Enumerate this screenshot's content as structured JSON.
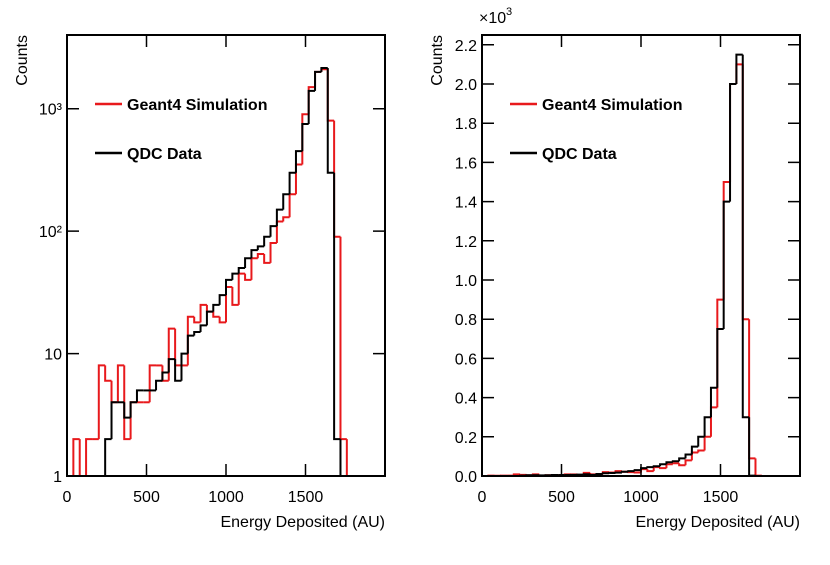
{
  "chart_data": [
    {
      "type": "histogram",
      "x_label": "Energy Deposited (AU)",
      "y_label": "Counts",
      "log_y": true,
      "bins": [
        0,
        40,
        80,
        120,
        160,
        200,
        240,
        280,
        320,
        360,
        400,
        440,
        480,
        520,
        560,
        600,
        640,
        680,
        720,
        760,
        800,
        840,
        880,
        920,
        960,
        1000,
        1040,
        1080,
        1120,
        1160,
        1200,
        1240,
        1280,
        1320,
        1360,
        1400,
        1440,
        1480,
        1520,
        1560,
        1600,
        1640,
        1680,
        1720,
        1760,
        1800,
        1840,
        1880,
        1920,
        1960,
        2000
      ],
      "series": [
        {
          "name": "Geant4 Simulation",
          "color": "#e8191c",
          "values": [
            0,
            2,
            1,
            2,
            2,
            8,
            6,
            4,
            8,
            2,
            4,
            4,
            4,
            8,
            8,
            6,
            16,
            8,
            8,
            20,
            18,
            25,
            22,
            20,
            18,
            35,
            25,
            45,
            40,
            60,
            65,
            55,
            80,
            120,
            130,
            200,
            350,
            900,
            1500,
            2000,
            2100,
            800,
            90,
            2,
            0,
            0,
            0,
            0,
            0,
            0
          ]
        },
        {
          "name": "QDC Data",
          "color": "#000000",
          "values": [
            0,
            0,
            0,
            0,
            0,
            0,
            2,
            4,
            4,
            3,
            4,
            5,
            5,
            5,
            6,
            7,
            9,
            6,
            10,
            14,
            15,
            17,
            22,
            25,
            30,
            40,
            45,
            50,
            60,
            70,
            75,
            90,
            110,
            150,
            200,
            300,
            450,
            750,
            1400,
            2000,
            2150,
            300,
            2,
            0,
            0,
            0,
            0,
            0,
            0,
            0
          ]
        }
      ],
      "xlim": [
        0,
        2000
      ],
      "xticks": [
        0,
        500,
        1000,
        1500
      ],
      "ylim": [
        1,
        4000
      ],
      "yticks": [
        1,
        10,
        {
          "value": 100,
          "label": "10²"
        },
        {
          "value": 1000,
          "label": "10³"
        }
      ],
      "legend": "upper left"
    },
    {
      "type": "histogram",
      "x_label": "Energy Deposited (AU)",
      "y_label": "Counts",
      "log_y": false,
      "multiplier_base": "×10",
      "multiplier_exponent": "3",
      "bins": [
        0,
        40,
        80,
        120,
        160,
        200,
        240,
        280,
        320,
        360,
        400,
        440,
        480,
        520,
        560,
        600,
        640,
        680,
        720,
        760,
        800,
        840,
        880,
        920,
        960,
        1000,
        1040,
        1080,
        1120,
        1160,
        1200,
        1240,
        1280,
        1320,
        1360,
        1400,
        1440,
        1480,
        1520,
        1560,
        1600,
        1640,
        1680,
        1720,
        1760,
        1800,
        1840,
        1880,
        1920,
        1960,
        2000
      ],
      "series": [
        {
          "name": "Geant4 Simulation",
          "color": "#e8191c",
          "values": [
            0,
            0.002,
            0.001,
            0.002,
            0.002,
            0.008,
            0.006,
            0.004,
            0.008,
            0.002,
            0.004,
            0.004,
            0.004,
            0.008,
            0.008,
            0.006,
            0.016,
            0.008,
            0.008,
            0.02,
            0.018,
            0.025,
            0.022,
            0.02,
            0.018,
            0.035,
            0.025,
            0.045,
            0.04,
            0.06,
            0.065,
            0.055,
            0.08,
            0.12,
            0.13,
            0.2,
            0.35,
            0.9,
            1.5,
            2.0,
            2.1,
            0.8,
            0.09,
            0.002,
            0,
            0,
            0,
            0,
            0,
            0
          ]
        },
        {
          "name": "QDC Data",
          "color": "#000000",
          "values": [
            0,
            0,
            0,
            0,
            0,
            0,
            0.002,
            0.004,
            0.004,
            0.003,
            0.004,
            0.005,
            0.005,
            0.005,
            0.006,
            0.007,
            0.009,
            0.006,
            0.01,
            0.014,
            0.015,
            0.017,
            0.022,
            0.025,
            0.03,
            0.04,
            0.045,
            0.05,
            0.06,
            0.07,
            0.075,
            0.09,
            0.11,
            0.15,
            0.2,
            0.3,
            0.45,
            0.75,
            1.4,
            2.0,
            2.15,
            0.3,
            0.002,
            0,
            0,
            0,
            0,
            0,
            0,
            0
          ]
        }
      ],
      "xlim": [
        0,
        2000
      ],
      "xticks": [
        0,
        500,
        1000,
        1500
      ],
      "ylim": [
        0,
        2.25
      ],
      "yticks": [
        {
          "value": 0,
          "label": "0.0"
        },
        {
          "value": 0.2,
          "label": "0.2"
        },
        {
          "value": 0.4,
          "label": "0.4"
        },
        {
          "value": 0.6,
          "label": "0.6"
        },
        {
          "value": 0.8,
          "label": "0.8"
        },
        {
          "value": 1.0,
          "label": "1.0"
        },
        {
          "value": 1.2,
          "label": "1.2"
        },
        {
          "value": 1.4,
          "label": "1.4"
        },
        {
          "value": 1.6,
          "label": "1.6"
        },
        {
          "value": 1.8,
          "label": "1.8"
        },
        {
          "value": 2.0,
          "label": "2.0"
        },
        {
          "value": 2.2,
          "label": "2.2"
        }
      ],
      "legend": "upper left"
    }
  ]
}
